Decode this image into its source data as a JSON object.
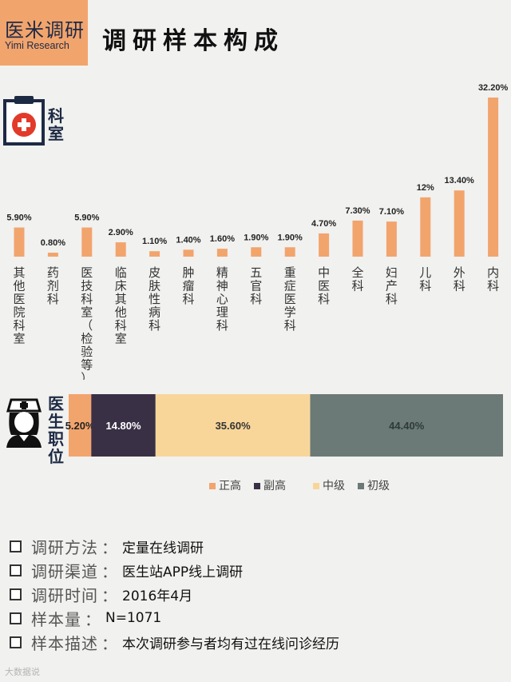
{
  "header": {
    "logo_cn": "医米调研",
    "logo_en": "Yimi Research",
    "title": "调研样本构成"
  },
  "section1": {
    "label": "科室",
    "icon": "clipboard-medical-icon"
  },
  "section2": {
    "label": "医生职位",
    "icon": "nurse-icon"
  },
  "colors": {
    "bar": "#f2a46d",
    "zhenggao": "#f2a46d",
    "fugao": "#3a3045",
    "zhongji": "#f8d69a",
    "chuji": "#6b7a76"
  },
  "chart_data": [
    {
      "type": "bar",
      "categories": [
        "其他医院科室",
        "药剂科",
        "医技科室（检验等）",
        "临床其他科室",
        "皮肤性病科",
        "肿瘤科",
        "精神心理科",
        "五官科",
        "重症医学科",
        "中医科",
        "全科",
        "妇产科",
        "儿科",
        "外科",
        "内科"
      ],
      "values": [
        5.9,
        0.8,
        5.9,
        2.9,
        1.1,
        1.4,
        1.6,
        1.9,
        1.9,
        4.7,
        7.3,
        7.1,
        12,
        13.4,
        32.2
      ],
      "value_labels": [
        "5.90%",
        "0.80%",
        "5.90%",
        "2.90%",
        "1.10%",
        "1.40%",
        "1.60%",
        "1.90%",
        "1.90%",
        "4.70%",
        "7.30%",
        "7.10%",
        "12%",
        "13.40%",
        "32.20%"
      ],
      "ylim": [
        0,
        32.2
      ],
      "grid": false
    },
    {
      "type": "bar",
      "stacked": true,
      "orientation": "horizontal",
      "series": [
        {
          "name": "正高",
          "value": 5.2,
          "label": "5.20%"
        },
        {
          "name": "副高",
          "value": 14.8,
          "label": "14.80%"
        },
        {
          "name": "中级",
          "value": 35.6,
          "label": "35.60%"
        },
        {
          "name": "初级",
          "value": 44.4,
          "label": "44.40%"
        }
      ],
      "legend_position": "bottom"
    }
  ],
  "info": [
    {
      "key": "调研方法",
      "value": "定量在线调研"
    },
    {
      "key": "调研渠道",
      "value": "医生站APP线上调研"
    },
    {
      "key": "调研时间",
      "value": "2016年4月"
    },
    {
      "key": "样本量",
      "value": "N=1071"
    },
    {
      "key": "样本描述",
      "value": "本次调研参与者均有过在线问诊经历"
    }
  ],
  "watermark": "大数据说"
}
